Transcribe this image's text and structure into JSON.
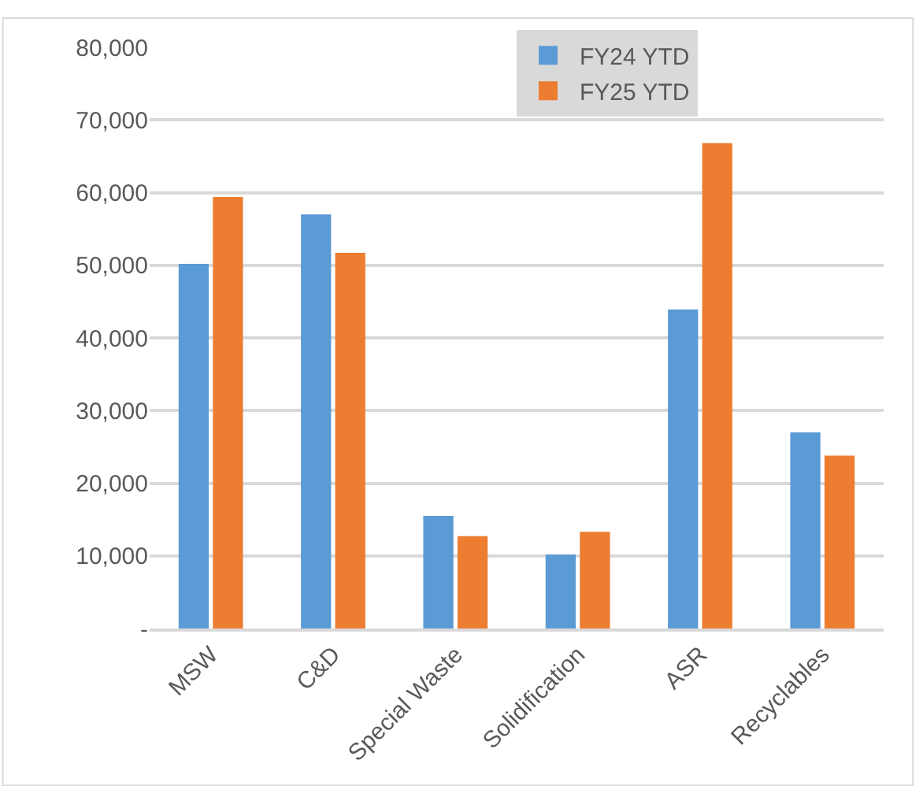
{
  "chart_data": {
    "type": "bar",
    "categories": [
      "MSW",
      "C&D",
      "Special Waste",
      "Solidification",
      "ASR",
      "Recyclables"
    ],
    "series": [
      {
        "name": "FY24 YTD",
        "color": "#5b9bd5",
        "values": [
          50200,
          57000,
          15500,
          10200,
          43900,
          27000
        ]
      },
      {
        "name": "FY25 YTD",
        "color": "#ed7d31",
        "values": [
          59400,
          51700,
          12700,
          13300,
          66800,
          23800
        ]
      }
    ],
    "ylim": [
      0,
      80000
    ],
    "yticks": [
      {
        "value": 0,
        "label": "-"
      },
      {
        "value": 10000,
        "label": "10,000"
      },
      {
        "value": 20000,
        "label": "20,000"
      },
      {
        "value": 30000,
        "label": "30,000"
      },
      {
        "value": 40000,
        "label": "40,000"
      },
      {
        "value": 50000,
        "label": "50,000"
      },
      {
        "value": 60000,
        "label": "60,000"
      },
      {
        "value": 70000,
        "label": "70,000"
      },
      {
        "value": 80000,
        "label": "80,000"
      }
    ],
    "grid": "y",
    "legend": "top"
  }
}
